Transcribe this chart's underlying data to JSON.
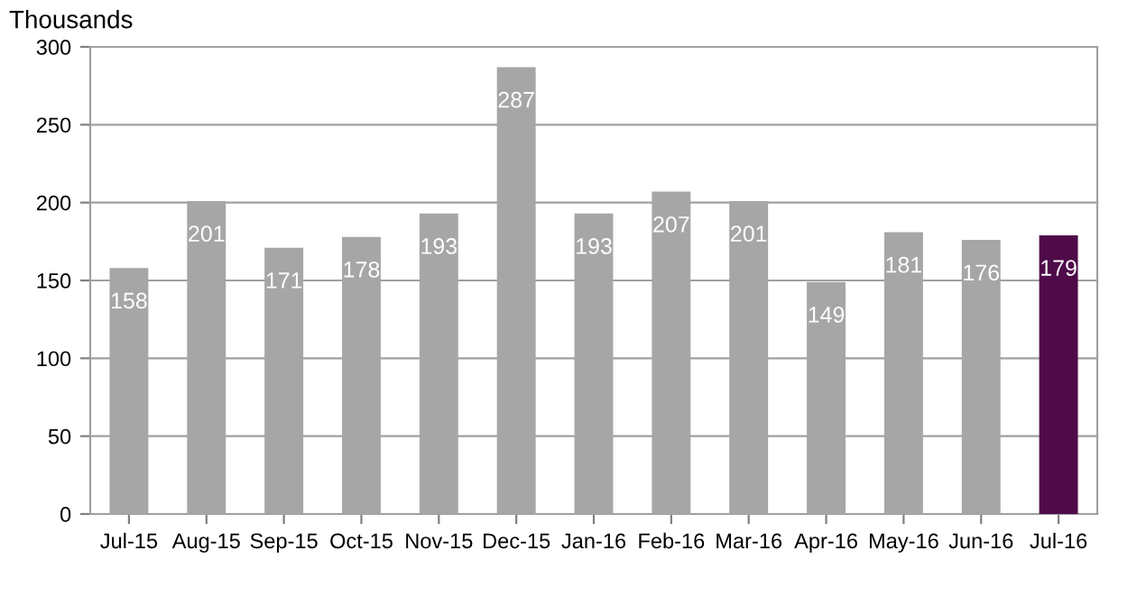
{
  "chart_data": {
    "type": "bar",
    "ylabel": "Thousands",
    "categories": [
      "Jul-15",
      "Aug-15",
      "Sep-15",
      "Oct-15",
      "Nov-15",
      "Dec-15",
      "Jan-16",
      "Feb-16",
      "Mar-16",
      "Apr-16",
      "May-16",
      "Jun-16",
      "Jul-16"
    ],
    "values": [
      158,
      201,
      171,
      178,
      193,
      287,
      193,
      207,
      201,
      149,
      181,
      176,
      179
    ],
    "colors": [
      "#a6a6a6",
      "#a6a6a6",
      "#a6a6a6",
      "#a6a6a6",
      "#a6a6a6",
      "#a6a6a6",
      "#a6a6a6",
      "#a6a6a6",
      "#a6a6a6",
      "#a6a6a6",
      "#a6a6a6",
      "#a6a6a6",
      "#4f0a4a"
    ],
    "ylim": [
      0,
      300
    ],
    "yticks": [
      0,
      50,
      100,
      150,
      200,
      250,
      300
    ],
    "grid": "y",
    "data_labels": true,
    "legend": false
  }
}
